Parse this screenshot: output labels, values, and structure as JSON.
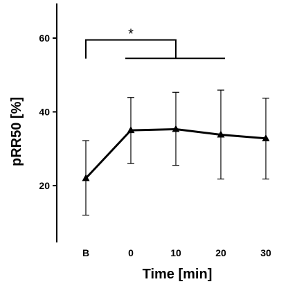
{
  "chart_data": {
    "type": "line",
    "title": "",
    "xlabel": "Time [min]",
    "ylabel": "pRR50 [%]",
    "categories": [
      "B",
      "0",
      "10",
      "20",
      "30"
    ],
    "ylim": [
      0,
      70
    ],
    "yticks": [
      20,
      40,
      60
    ],
    "series": [
      {
        "marker": "triangle",
        "color": "#000000",
        "values": [
          22.0,
          35.0,
          35.3,
          33.8,
          32.8
        ],
        "error_upper": [
          32.2,
          43.9,
          45.3,
          45.9,
          43.7
        ],
        "error_lower": [
          12.0,
          26.0,
          25.5,
          21.8,
          21.8
        ]
      }
    ],
    "grid": false,
    "annotations": [
      {
        "text": "*",
        "type": "significance-bracket",
        "from": "B",
        "to": "10",
        "y": 59.5
      },
      {
        "type": "line",
        "from": "0",
        "to": "20",
        "y": 54.5
      }
    ]
  }
}
